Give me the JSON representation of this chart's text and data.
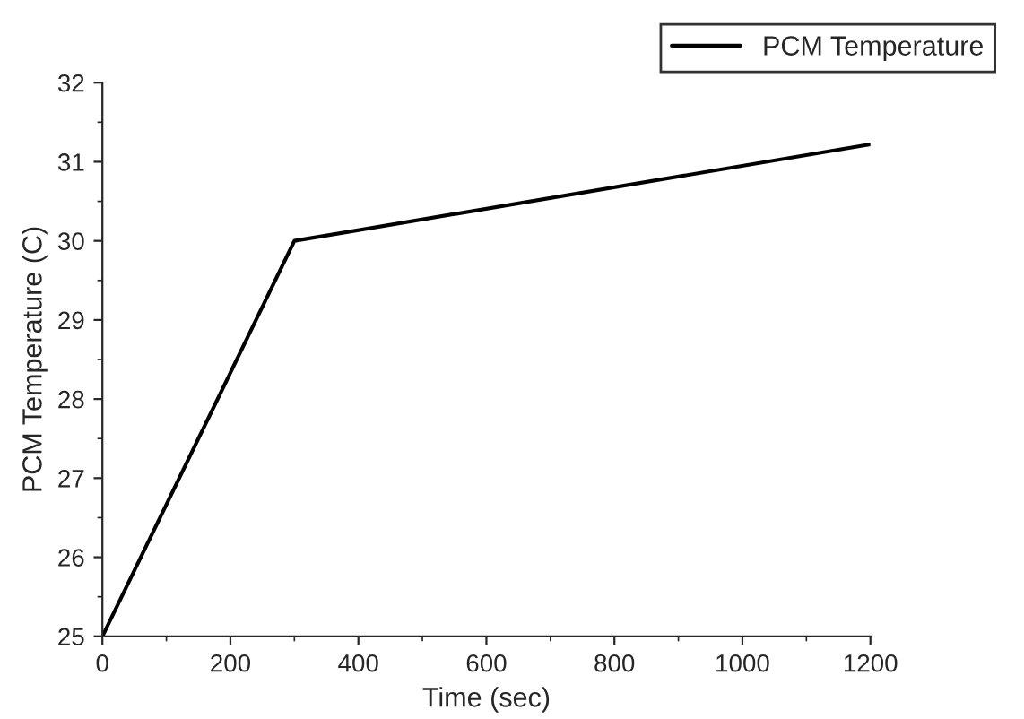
{
  "chart_data": {
    "type": "line",
    "xlabel": "Time (sec)",
    "ylabel": "PCM Temperature (C)",
    "x": [
      0,
      300,
      1200
    ],
    "series": [
      {
        "name": "PCM Temperature",
        "color": "#000000",
        "values": [
          25,
          30,
          31.22
        ]
      }
    ],
    "xlim": [
      0,
      1200
    ],
    "xticks": [
      0,
      200,
      400,
      600,
      800,
      1000,
      1200
    ],
    "ylim": [
      25,
      32
    ],
    "yticks": [
      25,
      26,
      27,
      28,
      29,
      30,
      31,
      32
    ],
    "legend": "top right",
    "grid": false,
    "marker": "none",
    "line_style": "solid"
  }
}
